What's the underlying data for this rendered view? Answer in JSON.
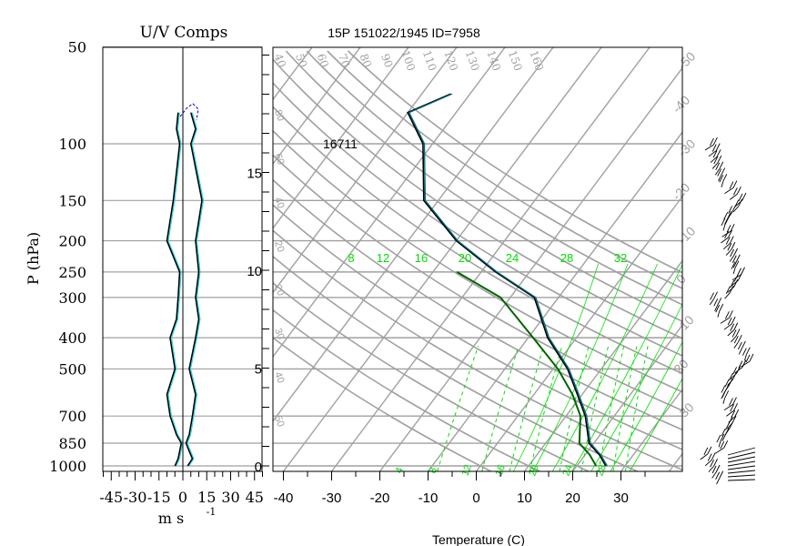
{
  "uv_panel": {
    "title": "U/V Comps",
    "ylabel": "P (hPa)",
    "xlabel": "m s",
    "xlabel_exp": "-1",
    "pressure_ticks": [
      50,
      100,
      150,
      200,
      250,
      300,
      400,
      500,
      700,
      850,
      1000
    ],
    "x_ticks": [
      -45,
      -30,
      -15,
      0,
      15,
      30,
      45
    ],
    "x_range": [
      -50,
      50
    ]
  },
  "skewt_panel": {
    "title": "15P 151022/1945 ID=7958",
    "xlabel": "Temperature (C)",
    "height_label": "16711",
    "temp_ticks": [
      -40,
      -30,
      -20,
      -10,
      0,
      10,
      20,
      30
    ],
    "height_ticks_km": [
      0,
      5,
      10,
      15
    ],
    "dry_adiabat_labels": [
      "40",
      "50",
      "60",
      "70",
      "80",
      "90",
      "100",
      "110",
      "120",
      "130",
      "140",
      "150",
      "160"
    ],
    "mixing_ratio_labels": [
      "8",
      "12",
      "16",
      "20",
      "24",
      "28",
      "32"
    ],
    "dewpoint_labels": [
      "-50",
      "-40",
      "-30",
      "-20",
      "-10",
      "0",
      "10",
      "20",
      "30"
    ],
    "moist_adiabat_labels": [
      "4",
      "8",
      "12",
      "16",
      "20",
      "24",
      "28"
    ]
  },
  "colors": {
    "grid": "#a0a0a0",
    "temperature": "#006b80",
    "cyan": "#2ad4e6",
    "parcel": "#006400",
    "moist": "#00e000",
    "axis": "#000000",
    "wind_u": "#0000cc"
  },
  "chart_data": [
    {
      "type": "line",
      "title": "U/V Comps",
      "xlabel": "m s-1",
      "ylabel": "P (hPa)",
      "xlim": [
        -50,
        50
      ],
      "ylim": [
        1000,
        50
      ],
      "y_scale": "log",
      "series": [
        {
          "name": "",
          "points": [
            [
              -5,
              1000
            ],
            [
              -3,
              950
            ],
            [
              -2,
              900
            ],
            [
              -1,
              850
            ],
            [
              -4,
              800
            ],
            [
              -8,
              700
            ],
            [
              -10,
              600
            ],
            [
              -5,
              500
            ],
            [
              -8,
              400
            ],
            [
              -4,
              350
            ],
            [
              -3,
              300
            ],
            [
              -2,
              250
            ],
            [
              -10,
              200
            ],
            [
              -6,
              150
            ],
            [
              -2,
              100
            ],
            [
              -4,
              90
            ],
            [
              -3,
              80
            ]
          ]
        },
        {
          "name": "",
          "points": [
            [
              3,
              1000
            ],
            [
              6,
              950
            ],
            [
              4,
              900
            ],
            [
              2,
              850
            ],
            [
              4,
              800
            ],
            [
              6,
              700
            ],
            [
              8,
              600
            ],
            [
              4,
              500
            ],
            [
              8,
              400
            ],
            [
              10,
              350
            ],
            [
              8,
              300
            ],
            [
              10,
              250
            ],
            [
              8,
              200
            ],
            [
              12,
              150
            ],
            [
              5,
              100
            ],
            [
              8,
              90
            ],
            [
              5,
              80
            ]
          ]
        }
      ]
    },
    {
      "type": "line",
      "title": "15P 151022/1945 ID=7958",
      "xlabel": "Temperature (C)",
      "xlim": [
        -40,
        40
      ],
      "ylim": [
        1000,
        50
      ],
      "y_scale": "log",
      "series": [
        {
          "name": "",
          "points": [
            [
              26,
              1000
            ],
            [
              23,
              925
            ],
            [
              19,
              850
            ],
            [
              14,
              700
            ],
            [
              9,
              600
            ],
            [
              3,
              500
            ],
            [
              -6,
              400
            ],
            [
              -15,
              300
            ],
            [
              -27,
              250
            ],
            [
              -40,
              200
            ],
            [
              -53,
              150
            ],
            [
              -62,
              100
            ],
            [
              -70,
              80
            ],
            [
              -64,
              70
            ]
          ]
        },
        {
          "name": "",
          "points": [
            [
              24,
              1000
            ],
            [
              21,
              925
            ],
            [
              17,
              850
            ],
            [
              13,
              700
            ],
            [
              8,
              600
            ],
            [
              1,
              500
            ],
            [
              -9,
              400
            ],
            [
              -22,
              300
            ],
            [
              -35,
              250
            ]
          ]
        }
      ]
    }
  ]
}
